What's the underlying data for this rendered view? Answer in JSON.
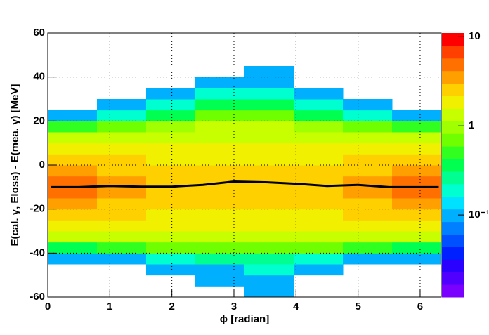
{
  "chart_data": {
    "type": "heatmap",
    "xlabel": "ϕ [radian]",
    "ylabel": "E(cal. γ, Eloss) - E(mea. γ) [MeV]",
    "xlim": [
      0,
      6.34
    ],
    "ylim": [
      -60,
      60
    ],
    "xticks": [
      0,
      1,
      2,
      3,
      4,
      5,
      6
    ],
    "yticks": [
      -60,
      -40,
      -20,
      0,
      20,
      40,
      60
    ],
    "grid": true,
    "x_bins": [
      0,
      0.7925,
      1.585,
      2.3775,
      3.17,
      3.9625,
      4.755,
      5.5475,
      6.34
    ],
    "y_bins": [
      -60,
      -55,
      -50,
      -45,
      -40,
      -35,
      -30,
      -25,
      -20,
      -15,
      -10,
      -5,
      0,
      5,
      10,
      15,
      20,
      25,
      30,
      35,
      40,
      45,
      50,
      55,
      60
    ],
    "z": [
      [
        0,
        0,
        0,
        0,
        0.1,
        0,
        0,
        0
      ],
      [
        0,
        0,
        0,
        0.1,
        0.1,
        0,
        0,
        0
      ],
      [
        0,
        0,
        0.1,
        0.1,
        0.2,
        0.1,
        0,
        0
      ],
      [
        0.1,
        0.1,
        0.2,
        0.3,
        0.3,
        0.2,
        0.1,
        0.1
      ],
      [
        0.4,
        0.5,
        0.6,
        0.8,
        0.8,
        0.6,
        0.5,
        0.4
      ],
      [
        1.2,
        1.2,
        1.3,
        1.5,
        1.5,
        1.3,
        1.2,
        1.2
      ],
      [
        1.8,
        1.7,
        1.6,
        1.6,
        1.6,
        1.6,
        1.7,
        1.8
      ],
      [
        2.5,
        2.2,
        2,
        1.9,
        1.9,
        2,
        2.2,
        2.5
      ],
      [
        3.5,
        3,
        2.5,
        2.2,
        2.2,
        2.5,
        3,
        3.5
      ],
      [
        4.5,
        3.8,
        3,
        2.6,
        2.6,
        3,
        3.8,
        4.5
      ],
      [
        4.5,
        3.8,
        3,
        2.6,
        2.6,
        3,
        3.8,
        4.5
      ],
      [
        3.5,
        3,
        2.5,
        2.3,
        2.3,
        2.5,
        3,
        3.5
      ],
      [
        2.5,
        2.2,
        2,
        2,
        2,
        2,
        2.2,
        2.5
      ],
      [
        1.8,
        1.7,
        1.6,
        1.8,
        1.8,
        1.6,
        1.7,
        1.8
      ],
      [
        1.2,
        1.2,
        1.3,
        1.5,
        1.5,
        1.3,
        1.2,
        1.2
      ],
      [
        0.5,
        0.7,
        0.9,
        1.2,
        1.2,
        0.9,
        0.7,
        0.5
      ],
      [
        0.1,
        0.2,
        0.4,
        0.8,
        0.8,
        0.4,
        0.2,
        0.1
      ],
      [
        0,
        0.1,
        0.2,
        0.4,
        0.4,
        0.2,
        0.1,
        0
      ],
      [
        0,
        0,
        0.1,
        0.2,
        0.2,
        0.1,
        0,
        0
      ],
      [
        0,
        0,
        0,
        0.1,
        0.1,
        0,
        0,
        0
      ],
      [
        0,
        0,
        0,
        0,
        0.1,
        0,
        0,
        0
      ],
      [
        0,
        0,
        0,
        0,
        0,
        0,
        0,
        0
      ],
      [
        0,
        0,
        0,
        0,
        0,
        0,
        0,
        0
      ],
      [
        0,
        0,
        0,
        0,
        0,
        0,
        0,
        0
      ]
    ],
    "zlim": [
      0.012,
      11
    ],
    "zscale": "log",
    "zticks": [
      {
        "value": 0.1,
        "label": "10⁻¹"
      },
      1,
      10
    ],
    "palette": [
      "#7a00ff",
      "#5000ff",
      "#2a00ff",
      "#0020ff",
      "#0050ff",
      "#0080ff",
      "#00b0ff",
      "#00e0ff",
      "#00ffd0",
      "#00ff90",
      "#00ff50",
      "#30ff20",
      "#70ff00",
      "#a0ff00",
      "#c8ff00",
      "#f0f000",
      "#ffd000",
      "#ffa000",
      "#ff7000",
      "#ff4000",
      "#ff0000"
    ],
    "series": [
      {
        "name": "profile",
        "color": "#000000",
        "x": [
          0.05,
          0.5,
          1,
          1.5,
          2,
          2.5,
          3,
          3.5,
          4,
          4.5,
          5,
          5.5,
          6,
          6.3
        ],
        "values": [
          -10,
          -10,
          -9.5,
          -9.8,
          -9.8,
          -9,
          -7.5,
          -7.8,
          -8.5,
          -9.5,
          -9,
          -10,
          -10,
          -10
        ]
      }
    ]
  }
}
